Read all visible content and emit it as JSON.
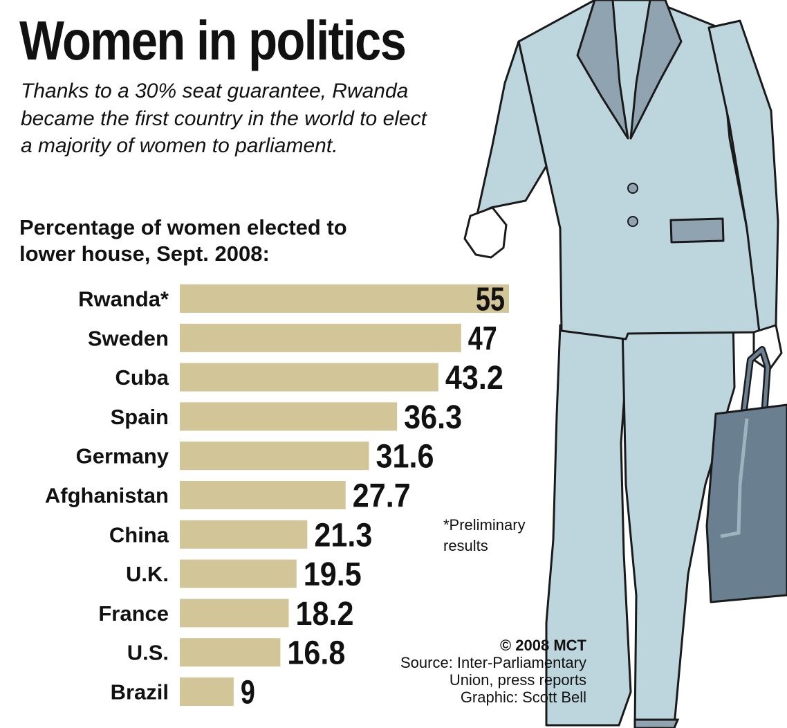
{
  "title": "Women in politics",
  "subtitle": "Thanks to a 30% seat guarantee, Rwanda became the first country in the world to elect a majority of women to parliament.",
  "chart_data": {
    "type": "bar",
    "orientation": "horizontal",
    "title": "Percentage of women elected to lower house, Sept. 2008:",
    "categories": [
      "Rwanda*",
      "Sweden",
      "Cuba",
      "Spain",
      "Germany",
      "Afghanistan",
      "China",
      "U.K.",
      "France",
      "U.S.",
      "Brazil"
    ],
    "values": [
      55,
      47,
      43.2,
      36.3,
      31.6,
      27.7,
      21.3,
      19.5,
      18.2,
      16.8,
      9
    ],
    "value_labels": [
      "55",
      "47",
      "43.2",
      "36.3",
      "31.6",
      "27.7",
      "21.3",
      "19.5",
      "18.2",
      "16.8",
      "9"
    ],
    "xlim": [
      0,
      55
    ],
    "grid": false,
    "bar_color": "#d2c597",
    "annotation": "*Preliminary results"
  },
  "credits": {
    "copyright": "© 2008 MCT",
    "source_line1": "Source: Inter-Parliamentary",
    "source_line2": "Union, press reports",
    "graphic": "Graphic: Scott Bell"
  },
  "illustration": {
    "suit_color": "#bdd6de",
    "lapel_color": "#8fa3b0",
    "bag_color": "#6a7f90",
    "outline_color": "#1a1a1a"
  }
}
